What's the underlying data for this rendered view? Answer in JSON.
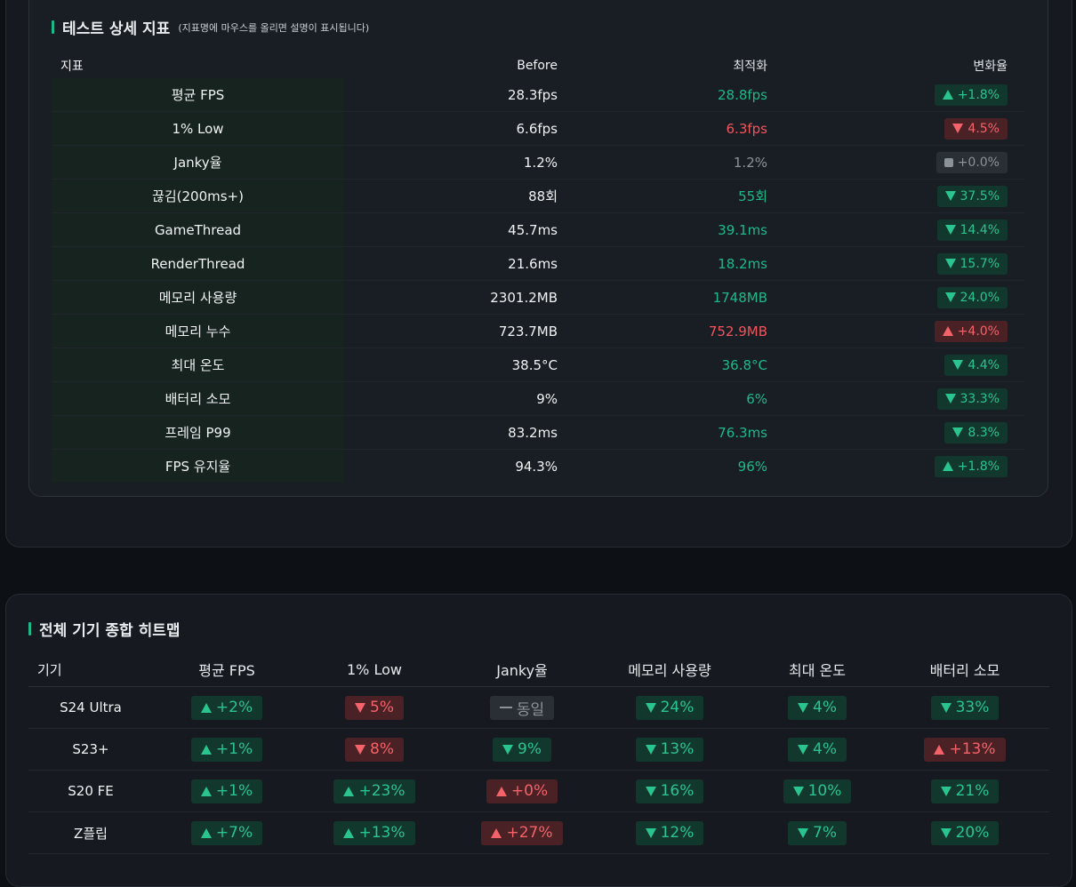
{
  "detail": {
    "title": "테스트 상세 지표",
    "hint": "(지표명에 마우스를 올리면 설명이 표시됩니다)",
    "headers": {
      "metric": "지표",
      "before": "Before",
      "optimized": "최적화",
      "change": "변화율"
    },
    "rows": [
      {
        "metric": "평균 FPS",
        "before": "28.3fps",
        "after": "28.8fps",
        "after_tone": "good",
        "change": "+1.8%",
        "dir": "up",
        "tone": "good"
      },
      {
        "metric": "1% Low",
        "before": "6.6fps",
        "after": "6.3fps",
        "after_tone": "bad",
        "change": "4.5%",
        "dir": "down",
        "tone": "bad"
      },
      {
        "metric": "Janky율",
        "before": "1.2%",
        "after": "1.2%",
        "after_tone": "neutral",
        "change": "+0.0%",
        "dir": "flat",
        "tone": "neutral"
      },
      {
        "metric": "끊김(200ms+)",
        "before": "88회",
        "after": "55회",
        "after_tone": "good",
        "change": "37.5%",
        "dir": "down",
        "tone": "good"
      },
      {
        "metric": "GameThread",
        "before": "45.7ms",
        "after": "39.1ms",
        "after_tone": "good",
        "change": "14.4%",
        "dir": "down",
        "tone": "good"
      },
      {
        "metric": "RenderThread",
        "before": "21.6ms",
        "after": "18.2ms",
        "after_tone": "good",
        "change": "15.7%",
        "dir": "down",
        "tone": "good"
      },
      {
        "metric": "메모리 사용량",
        "before": "2301.2MB",
        "after": "1748MB",
        "after_tone": "good",
        "change": "24.0%",
        "dir": "down",
        "tone": "good"
      },
      {
        "metric": "메모리 누수",
        "before": "723.7MB",
        "after": "752.9MB",
        "after_tone": "bad",
        "change": "+4.0%",
        "dir": "up",
        "tone": "bad"
      },
      {
        "metric": "최대 온도",
        "before": "38.5°C",
        "after": "36.8°C",
        "after_tone": "good",
        "change": "4.4%",
        "dir": "down",
        "tone": "good"
      },
      {
        "metric": "배터리 소모",
        "before": "9%",
        "after": "6%",
        "after_tone": "good",
        "change": "33.3%",
        "dir": "down",
        "tone": "good"
      },
      {
        "metric": "프레임 P99",
        "before": "83.2ms",
        "after": "76.3ms",
        "after_tone": "good",
        "change": "8.3%",
        "dir": "down",
        "tone": "good"
      },
      {
        "metric": "FPS 유지율",
        "before": "94.3%",
        "after": "96%",
        "after_tone": "good",
        "change": "+1.8%",
        "dir": "up",
        "tone": "good"
      }
    ]
  },
  "heatmap": {
    "title": "전체 기기 종합 히트맵",
    "headers": [
      "기기",
      "평균 FPS",
      "1% Low",
      "Janky율",
      "메모리 사용량",
      "최대 온도",
      "배터리 소모"
    ],
    "rows": [
      {
        "device": "S24 Ultra",
        "cells": [
          {
            "text": "+2%",
            "dir": "up",
            "tone": "good"
          },
          {
            "text": "5%",
            "dir": "down",
            "tone": "bad"
          },
          {
            "text": "동일",
            "dir": "flat",
            "tone": "neutral"
          },
          {
            "text": "24%",
            "dir": "down",
            "tone": "good"
          },
          {
            "text": "4%",
            "dir": "down",
            "tone": "good"
          },
          {
            "text": "33%",
            "dir": "down",
            "tone": "good"
          }
        ]
      },
      {
        "device": "S23+",
        "cells": [
          {
            "text": "+1%",
            "dir": "up",
            "tone": "good"
          },
          {
            "text": "8%",
            "dir": "down",
            "tone": "bad"
          },
          {
            "text": "9%",
            "dir": "down",
            "tone": "good"
          },
          {
            "text": "13%",
            "dir": "down",
            "tone": "good"
          },
          {
            "text": "4%",
            "dir": "down",
            "tone": "good"
          },
          {
            "text": "+13%",
            "dir": "up",
            "tone": "bad"
          }
        ]
      },
      {
        "device": "S20 FE",
        "cells": [
          {
            "text": "+1%",
            "dir": "up",
            "tone": "good"
          },
          {
            "text": "+23%",
            "dir": "up",
            "tone": "good"
          },
          {
            "text": "+0%",
            "dir": "up",
            "tone": "bad"
          },
          {
            "text": "16%",
            "dir": "down",
            "tone": "good"
          },
          {
            "text": "10%",
            "dir": "down",
            "tone": "good"
          },
          {
            "text": "21%",
            "dir": "down",
            "tone": "good"
          }
        ]
      },
      {
        "device": "Z플립",
        "cells": [
          {
            "text": "+7%",
            "dir": "up",
            "tone": "good"
          },
          {
            "text": "+13%",
            "dir": "up",
            "tone": "good"
          },
          {
            "text": "+27%",
            "dir": "up",
            "tone": "bad"
          },
          {
            "text": "12%",
            "dir": "down",
            "tone": "good"
          },
          {
            "text": "7%",
            "dir": "down",
            "tone": "good"
          },
          {
            "text": "20%",
            "dir": "down",
            "tone": "good"
          }
        ]
      }
    ]
  },
  "colors": {
    "good": "#2ac48f",
    "bad": "#f4626a",
    "neutral": "#8b9298",
    "accent": "#1fb889"
  }
}
